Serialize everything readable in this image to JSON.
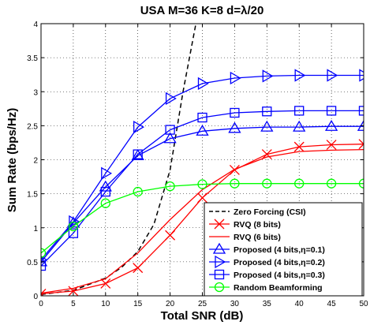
{
  "chart_data": {
    "type": "line",
    "title": "USA M=36 K=8 d=λ/20",
    "xlabel": "Total SNR (dB)",
    "ylabel": "Sum Rate (bps/Hz)",
    "xlim": [
      0,
      50
    ],
    "ylim": [
      0,
      4
    ],
    "xticks": [
      0,
      5,
      10,
      15,
      20,
      25,
      30,
      35,
      40,
      45,
      50
    ],
    "yticks": [
      0,
      0.5,
      1,
      1.5,
      2,
      2.5,
      3,
      3.5,
      4
    ],
    "xtick_labels": [
      "0",
      "5",
      "10",
      "15",
      "20",
      "25",
      "30",
      "35",
      "40",
      "45",
      "50"
    ],
    "ytick_labels": [
      "0",
      "0.5",
      "1",
      "1.5",
      "2",
      "2.5",
      "3",
      "3.5",
      "4"
    ],
    "grid": true,
    "legend_position": "bottom-right",
    "series": [
      {
        "name": "Zero Forcing (CSI)",
        "color": "#000000",
        "dash": "dashed",
        "marker": "none",
        "x": [
          0,
          5,
          10,
          12.5,
          15,
          17.5,
          20,
          22,
          24
        ],
        "y": [
          0.02,
          0.08,
          0.26,
          0.42,
          0.65,
          1.05,
          1.85,
          3.0,
          4.0
        ]
      },
      {
        "name": "RVQ (8 bits)",
        "color": "#ff0000",
        "dash": "solid",
        "marker": "x",
        "x": [
          0,
          5,
          10,
          15,
          20,
          25,
          30,
          35,
          40,
          45,
          50
        ],
        "y": [
          0.03,
          0.07,
          0.18,
          0.41,
          0.89,
          1.44,
          1.85,
          2.08,
          2.19,
          2.22,
          2.23
        ]
      },
      {
        "name": "RVQ (6 bits)",
        "color": "#ff0000",
        "dash": "solid",
        "marker": "none",
        "x": [
          0,
          5,
          10,
          15,
          20,
          25,
          30,
          35,
          40,
          45,
          50
        ],
        "y": [
          0.04,
          0.11,
          0.25,
          0.63,
          1.12,
          1.56,
          1.86,
          2.04,
          2.12,
          2.14,
          2.15
        ]
      },
      {
        "name": "Proposed (4 bits,η=0.1)",
        "color": "#0000ff",
        "dash": "solid",
        "marker": "triangle-up",
        "x": [
          0,
          5,
          10,
          15,
          20,
          25,
          30,
          35,
          40,
          45,
          50
        ],
        "y": [
          0.5,
          1.07,
          1.6,
          2.06,
          2.31,
          2.42,
          2.46,
          2.48,
          2.48,
          2.49,
          2.49
        ]
      },
      {
        "name": "Proposed (4 bits,η=0.2)",
        "color": "#0000ff",
        "dash": "solid",
        "marker": "triangle-right",
        "x": [
          0,
          5,
          10,
          15,
          20,
          25,
          30,
          35,
          40,
          45,
          50
        ],
        "y": [
          0.53,
          1.09,
          1.8,
          2.48,
          2.9,
          3.12,
          3.2,
          3.23,
          3.24,
          3.24,
          3.24
        ]
      },
      {
        "name": "Proposed (4 bits,η=0.3)",
        "color": "#0000ff",
        "dash": "solid",
        "marker": "square",
        "x": [
          0,
          5,
          10,
          15,
          20,
          25,
          30,
          35,
          40,
          45,
          50
        ],
        "y": [
          0.44,
          0.92,
          1.53,
          2.08,
          2.44,
          2.62,
          2.69,
          2.71,
          2.72,
          2.72,
          2.72
        ]
      },
      {
        "name": "Random Beamforming",
        "color": "#00ff00",
        "dash": "solid",
        "marker": "circle",
        "x": [
          0,
          5,
          10,
          15,
          20,
          25,
          30,
          35,
          40,
          45,
          50
        ],
        "y": [
          0.63,
          1.02,
          1.36,
          1.53,
          1.61,
          1.64,
          1.65,
          1.65,
          1.65,
          1.65,
          1.65
        ]
      }
    ]
  }
}
